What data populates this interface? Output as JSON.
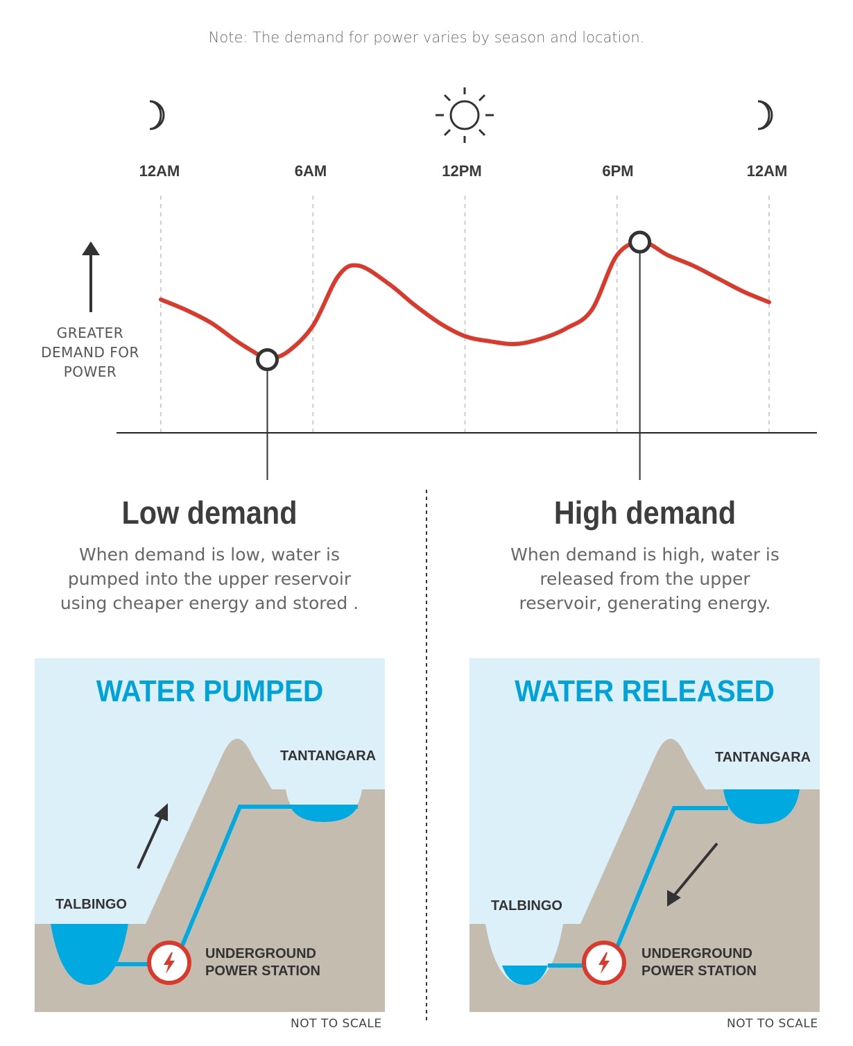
{
  "note": "Note: The demand for power varies by season and location.",
  "icons": [
    "moon-icon",
    "sun-icon",
    "moon-icon"
  ],
  "times": [
    "12AM",
    "6AM",
    "12PM",
    "6PM",
    "12AM"
  ],
  "y_axis_label": [
    "GREATER",
    "DEMAND FOR",
    "POWER"
  ],
  "chart_data": {
    "type": "line",
    "title": "",
    "x": [
      "12AM",
      "6AM",
      "12PM",
      "6PM",
      "12AM"
    ],
    "xlabel": "",
    "ylabel": "GREATER DEMAND FOR POWER",
    "series": [
      {
        "points": [
          [
            0,
            6.1
          ],
          [
            1,
            5.7
          ],
          [
            2,
            5.2
          ],
          [
            3,
            4.5
          ],
          [
            4,
            3.9
          ],
          [
            4.2,
            3.8
          ],
          [
            5,
            4.1
          ],
          [
            6,
            5.1
          ],
          [
            7,
            7.0
          ],
          [
            7.8,
            7.4
          ],
          [
            9,
            6.7
          ],
          [
            10,
            5.9
          ],
          [
            11,
            5.2
          ],
          [
            12,
            4.7
          ],
          [
            13,
            4.5
          ],
          [
            14,
            4.4
          ],
          [
            15,
            4.6
          ],
          [
            16,
            5.0
          ],
          [
            17,
            5.7
          ],
          [
            18,
            7.8
          ],
          [
            19,
            8.3
          ],
          [
            20,
            7.8
          ],
          [
            21,
            7.4
          ],
          [
            22,
            6.9
          ],
          [
            23,
            6.4
          ],
          [
            24,
            6.0
          ]
        ]
      }
    ],
    "markers": [
      {
        "x": 4.2,
        "y": 3.8,
        "label": "Low demand"
      },
      {
        "x": 18.9,
        "y": 8.3,
        "label": "High demand"
      }
    ],
    "xlim": [
      0,
      24
    ],
    "ylim": [
      1,
      10
    ],
    "line_color": "#d93a2b"
  },
  "low": {
    "title": "Low demand",
    "desc": [
      "When demand is low, water is",
      "pumped into the upper reservoir",
      "using cheaper energy and stored ."
    ]
  },
  "high": {
    "title": "High demand",
    "desc": [
      "When demand is high, water is",
      "released from the upper",
      "reservoir, generating energy."
    ]
  },
  "panels": [
    {
      "title": "WATER PUMPED",
      "upper_reservoir": "TANTANGARA",
      "lower_reservoir": "TALBINGO",
      "station": [
        "UNDERGROUND",
        "POWER STATION"
      ],
      "flow_direction": "up",
      "footer": "NOT TO SCALE"
    },
    {
      "title": "WATER RELEASED",
      "upper_reservoir": "TANTANGARA",
      "lower_reservoir": "TALBINGO",
      "station": [
        "UNDERGROUND",
        "POWER STATION"
      ],
      "flow_direction": "down",
      "footer": "NOT TO SCALE"
    }
  ],
  "colors": {
    "water": "#00a9e0",
    "sky": "#dcf0f9",
    "ground": "#c5bcb0",
    "demand_line": "#d93a2b",
    "station_ring": "#d93a2b"
  }
}
